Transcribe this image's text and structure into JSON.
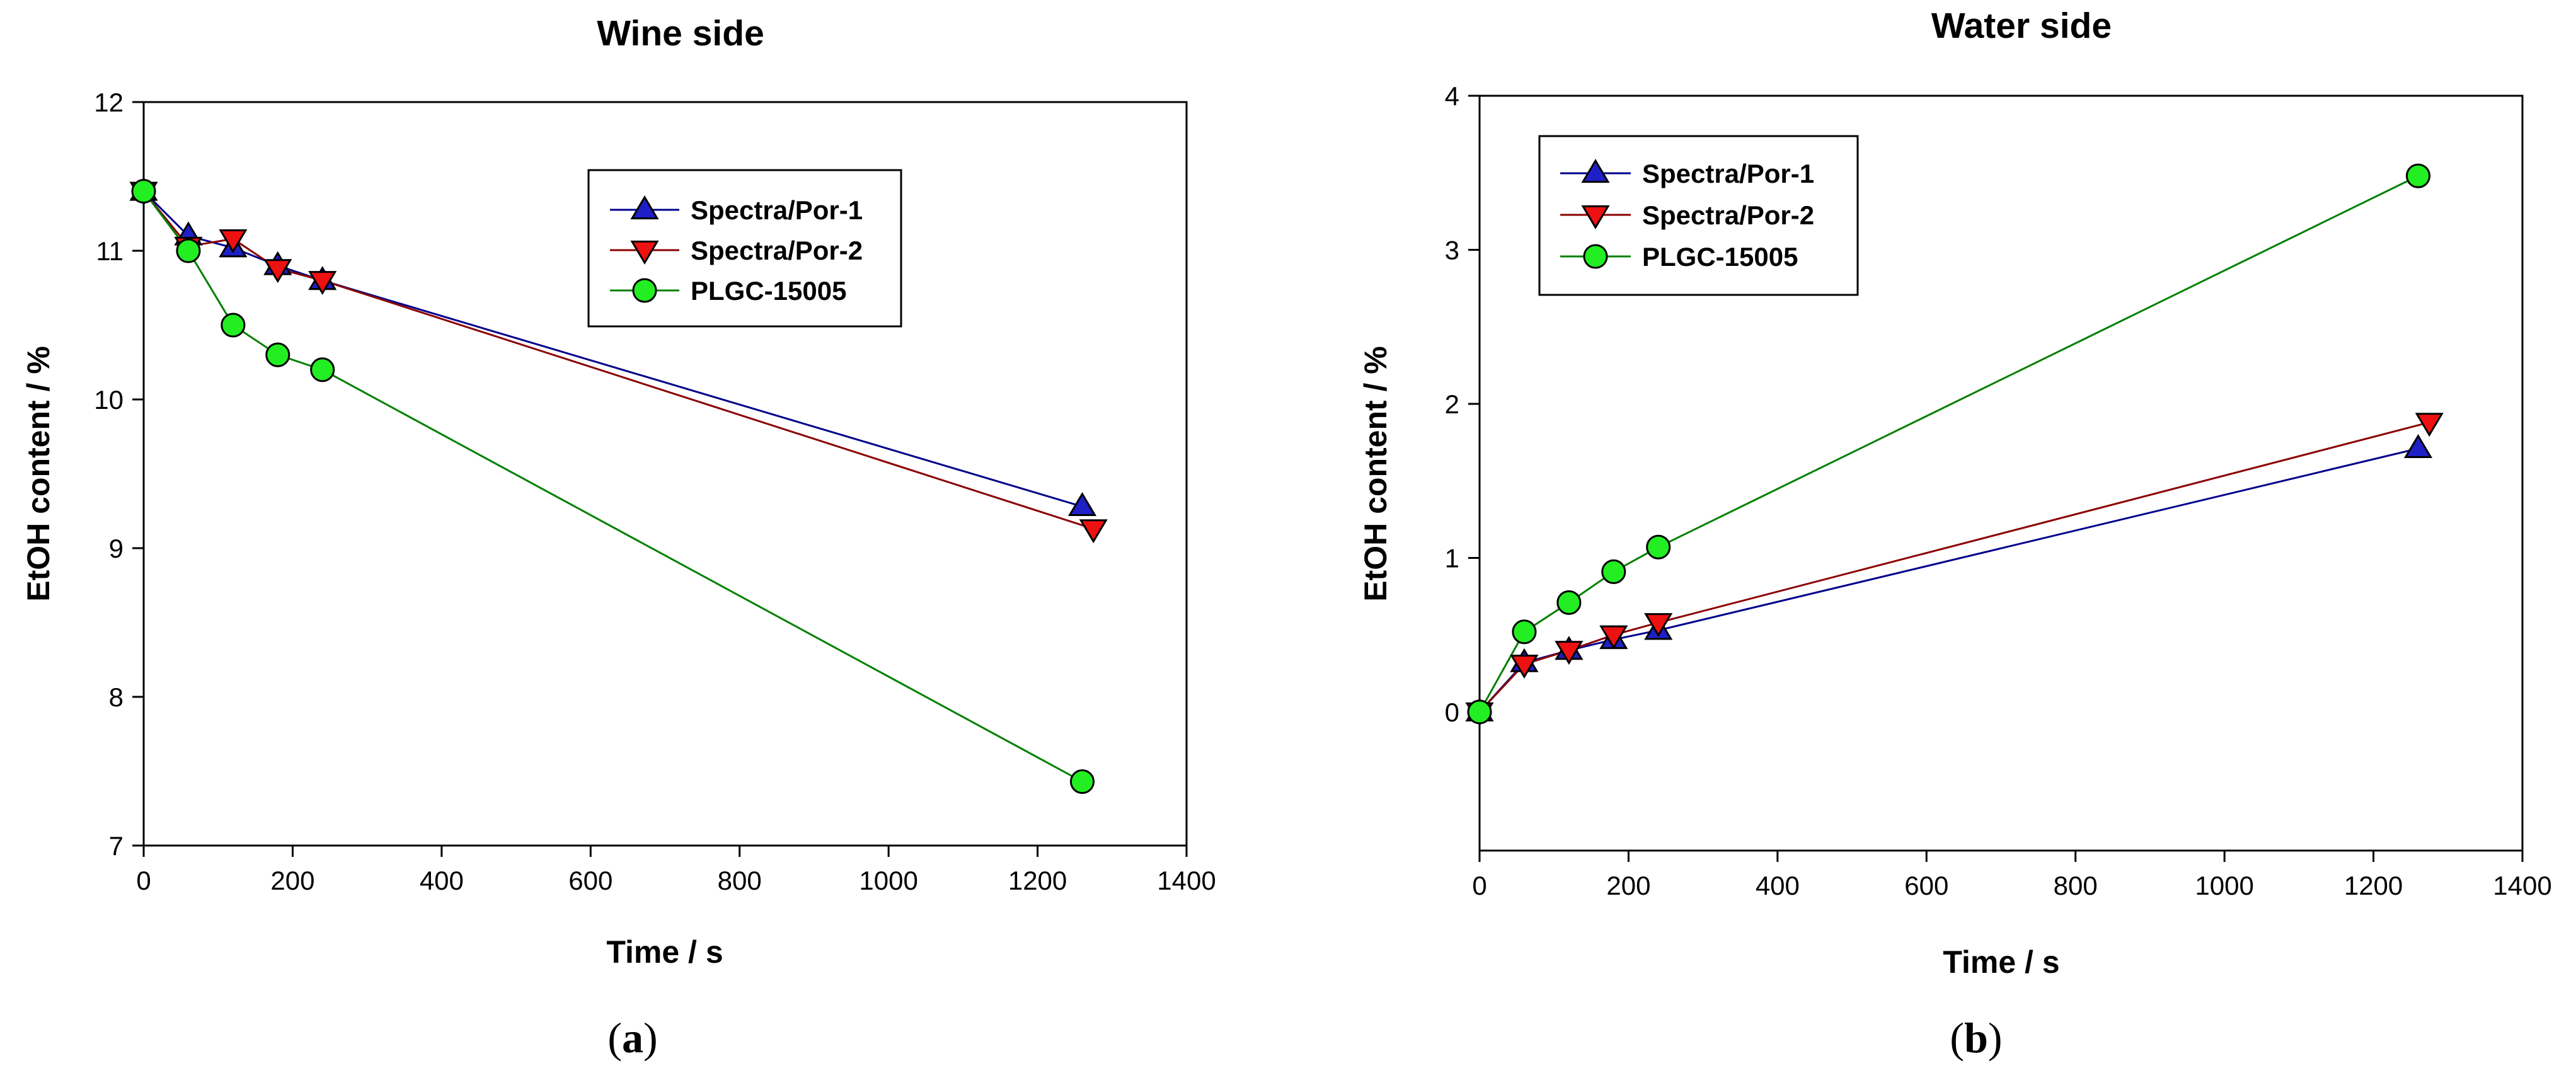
{
  "chart_data": [
    {
      "type": "line",
      "title": "Wine side",
      "panel_label": "a",
      "xlabel": "Time / s",
      "ylabel": "EtOH content / %",
      "xlim": [
        0,
        1400
      ],
      "ylim": [
        7,
        12
      ],
      "xticks": [
        0,
        200,
        400,
        600,
        800,
        1000,
        1200,
        1400
      ],
      "yticks": [
        7,
        8,
        9,
        10,
        11,
        12
      ],
      "xtick_labels": [
        "0",
        "200",
        "400",
        "600",
        "800",
        "1000",
        "1200",
        "1400"
      ],
      "ytick_labels": [
        "7",
        "8",
        "9",
        "10",
        "11",
        "12"
      ],
      "legend_position": "top-right",
      "series": [
        {
          "name": "Spectra/Por-1",
          "marker": "triangle-up",
          "color": "#1f1fc8",
          "line_color": "#00008b",
          "x": [
            0,
            60,
            120,
            180,
            240,
            1260
          ],
          "y": [
            11.4,
            11.1,
            11.02,
            10.9,
            10.8,
            9.28
          ]
        },
        {
          "name": "Spectra/Por-2",
          "marker": "triangle-down",
          "color": "#ee1111",
          "line_color": "#8b0000",
          "x": [
            0,
            60,
            120,
            180,
            240,
            1275
          ],
          "y": [
            11.4,
            11.03,
            11.08,
            10.88,
            10.8,
            9.13
          ]
        },
        {
          "name": "PLGC-15005",
          "marker": "circle",
          "color": "#22ee22",
          "line_color": "#008000",
          "x": [
            0,
            60,
            120,
            180,
            240,
            1260
          ],
          "y": [
            11.4,
            11.0,
            10.5,
            10.3,
            10.2,
            7.43
          ]
        }
      ]
    },
    {
      "type": "line",
      "title": "Water side",
      "panel_label": "b",
      "xlabel": "Time / s",
      "ylabel": "EtOH content / %",
      "xlim": [
        0,
        1400
      ],
      "ylim": [
        -0.9,
        4
      ],
      "xticks": [
        0,
        200,
        400,
        600,
        800,
        1000,
        1200,
        1400
      ],
      "yticks": [
        0,
        1,
        2,
        3,
        4
      ],
      "xtick_labels": [
        "0",
        "200",
        "400",
        "600",
        "800",
        "1000",
        "1200",
        "1400"
      ],
      "ytick_labels": [
        "0",
        "1",
        "2",
        "3",
        "4"
      ],
      "legend_position": "top-left",
      "series": [
        {
          "name": "Spectra/Por-1",
          "marker": "triangle-up",
          "color": "#1f1fc8",
          "line_color": "#00008b",
          "x": [
            0,
            60,
            120,
            180,
            240,
            1260
          ],
          "y": [
            0,
            0.32,
            0.4,
            0.47,
            0.53,
            1.71
          ]
        },
        {
          "name": "Spectra/Por-2",
          "marker": "triangle-down",
          "color": "#ee1111",
          "line_color": "#8b0000",
          "x": [
            0,
            60,
            120,
            180,
            240,
            1275
          ],
          "y": [
            0,
            0.31,
            0.4,
            0.5,
            0.58,
            1.88
          ]
        },
        {
          "name": "PLGC-15005",
          "marker": "circle",
          "color": "#22ee22",
          "line_color": "#008000",
          "x": [
            0,
            60,
            120,
            180,
            240,
            1260
          ],
          "y": [
            0,
            0.52,
            0.71,
            0.91,
            1.07,
            3.48
          ]
        }
      ]
    }
  ]
}
